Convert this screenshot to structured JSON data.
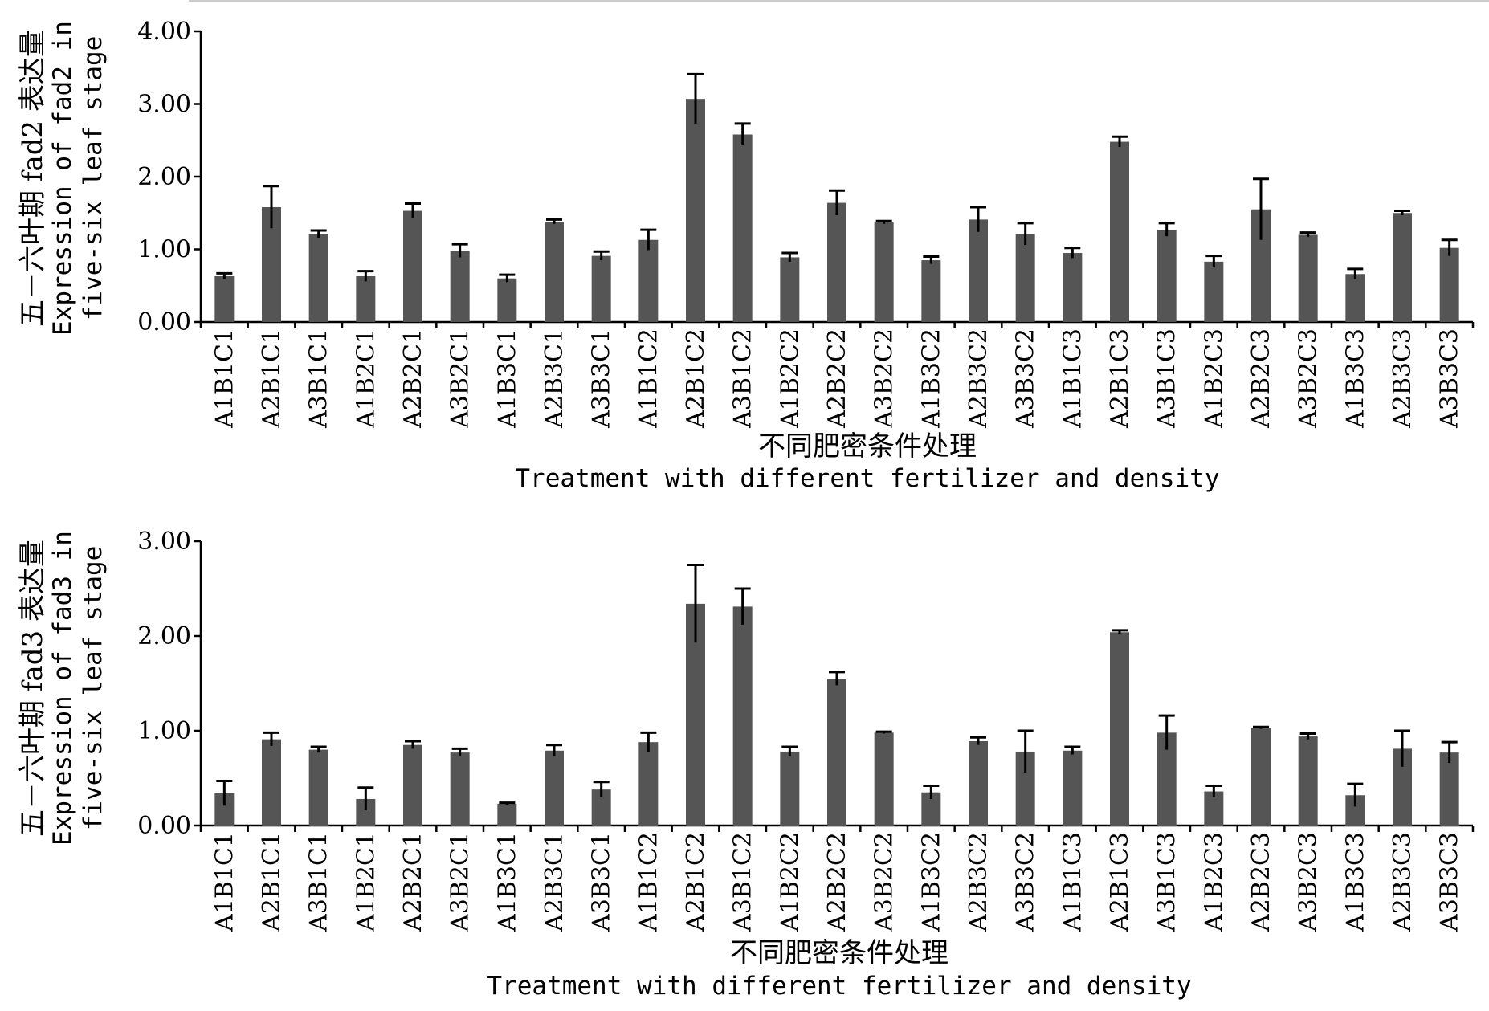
{
  "chart_data": [
    {
      "type": "bar",
      "ylabel_cn": "五－六叶期 fad2 表达量",
      "ylabel_en_1": "Expression of fad2 in",
      "ylabel_en_2": "five-six leaf stage",
      "xlabel_cn": "不同肥密条件处理",
      "xlabel_en": "Treatment with different fertilizer and density",
      "ylim": [
        0,
        4
      ],
      "yticks": [
        "0.00",
        "1.00",
        "2.00",
        "3.00",
        "4.00"
      ],
      "categories": [
        "A1B1C1",
        "A2B1C1",
        "A3B1C1",
        "A1B2C1",
        "A2B2C1",
        "A3B2C1",
        "A1B3C1",
        "A2B3C1",
        "A3B3C1",
        "A1B1C2",
        "A2B1C2",
        "A3B1C2",
        "A1B2C2",
        "A2B2C2",
        "A3B2C2",
        "A1B3C2",
        "A2B3C2",
        "A3B3C2",
        "A1B1C3",
        "A2B1C3",
        "A3B1C3",
        "A1B2C3",
        "A2B2C3",
        "A3B2C3",
        "A1B3C3",
        "A2B3C3",
        "A3B3C3"
      ],
      "values": [
        0.63,
        1.58,
        1.21,
        0.63,
        1.53,
        0.98,
        0.6,
        1.38,
        0.91,
        1.13,
        3.07,
        2.58,
        0.89,
        1.64,
        1.37,
        0.85,
        1.41,
        1.21,
        0.95,
        2.48,
        1.27,
        0.83,
        1.55,
        1.2,
        0.66,
        1.5,
        1.02
      ],
      "errors": [
        0.04,
        0.29,
        0.05,
        0.07,
        0.1,
        0.09,
        0.05,
        0.03,
        0.06,
        0.14,
        0.34,
        0.15,
        0.06,
        0.17,
        0.02,
        0.05,
        0.17,
        0.15,
        0.07,
        0.07,
        0.09,
        0.08,
        0.42,
        0.03,
        0.07,
        0.03,
        0.11
      ],
      "bar_color": "#555555"
    },
    {
      "type": "bar",
      "ylabel_cn": "五－六叶期 fad3 表达量",
      "ylabel_en_1": "Expression of fad3 in",
      "ylabel_en_2": "five-six leaf stage",
      "xlabel_cn": "不同肥密条件处理",
      "xlabel_en": "Treatment with different fertilizer and density",
      "ylim": [
        0,
        3
      ],
      "yticks": [
        "0.00",
        "1.00",
        "2.00",
        "3.00"
      ],
      "categories": [
        "A1B1C1",
        "A2B1C1",
        "A3B1C1",
        "A1B2C1",
        "A2B2C1",
        "A3B2C1",
        "A1B3C1",
        "A2B3C1",
        "A3B3C1",
        "A1B1C2",
        "A2B1C2",
        "A3B1C2",
        "A1B2C2",
        "A2B2C2",
        "A3B2C2",
        "A1B3C2",
        "A2B3C2",
        "A3B3C2",
        "A1B1C3",
        "A2B1C3",
        "A3B1C3",
        "A1B2C3",
        "A2B2C3",
        "A3B2C3",
        "A1B3C3",
        "A2B3C3",
        "A3B3C3"
      ],
      "values": [
        0.34,
        0.91,
        0.8,
        0.28,
        0.85,
        0.77,
        0.23,
        0.79,
        0.38,
        0.88,
        2.34,
        2.31,
        0.78,
        1.55,
        0.98,
        0.35,
        0.89,
        0.78,
        0.79,
        2.04,
        0.98,
        0.36,
        1.03,
        0.94,
        0.32,
        0.81,
        0.77
      ],
      "errors": [
        0.13,
        0.07,
        0.03,
        0.12,
        0.04,
        0.04,
        0.01,
        0.06,
        0.08,
        0.1,
        0.41,
        0.19,
        0.05,
        0.07,
        0.01,
        0.07,
        0.04,
        0.22,
        0.04,
        0.02,
        0.18,
        0.06,
        0.01,
        0.03,
        0.12,
        0.19,
        0.11
      ],
      "bar_color": "#555555"
    }
  ]
}
